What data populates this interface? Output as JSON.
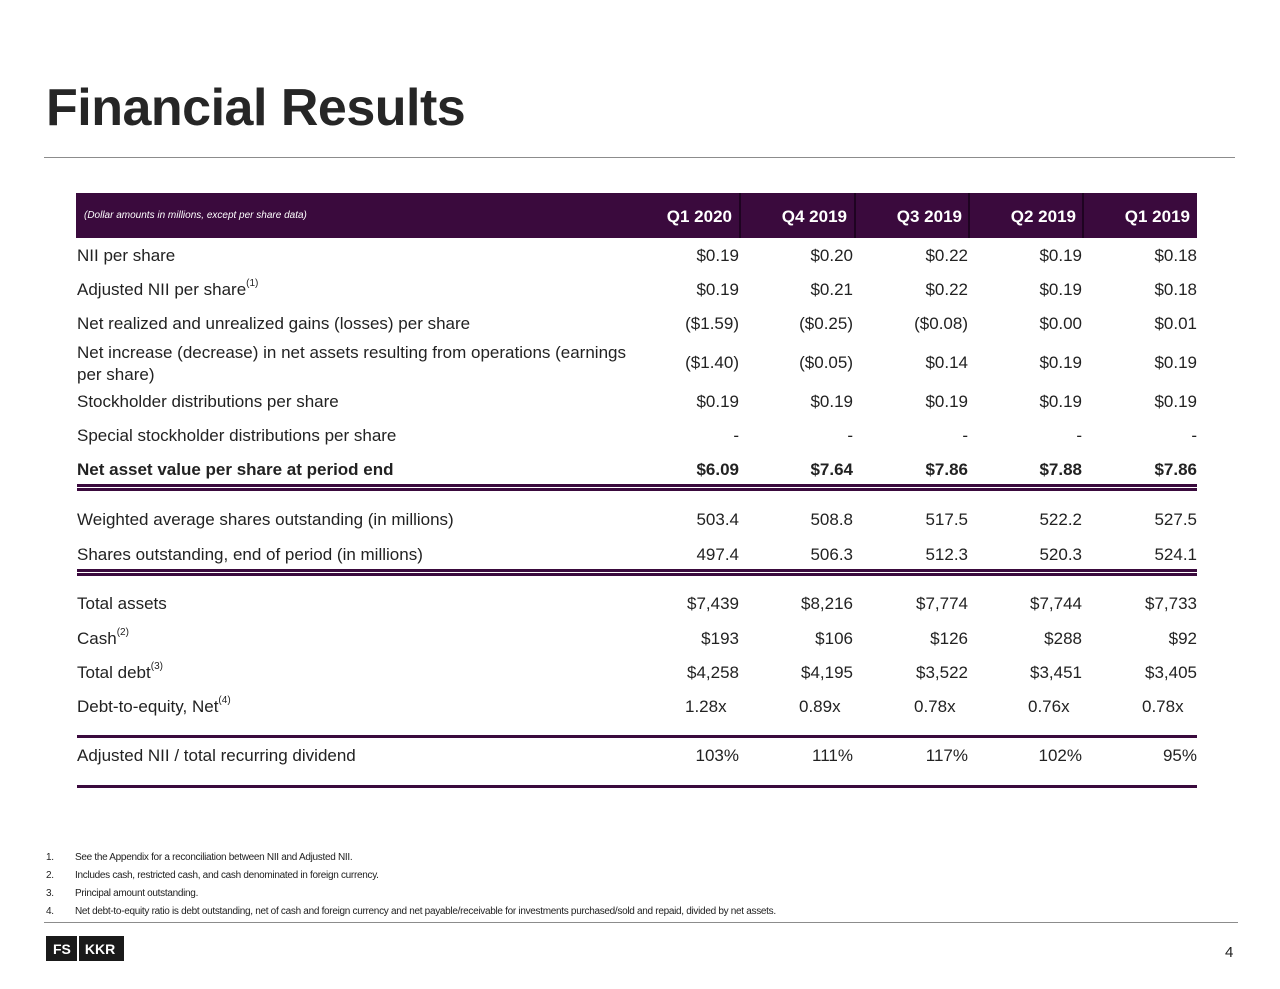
{
  "title": "Financial Results",
  "table": {
    "note": "(Dollar amounts in millions, except per share data)",
    "columns": [
      "Q1 2020",
      "Q4 2019",
      "Q3 2019",
      "Q2 2019",
      "Q1 2019"
    ],
    "rows": [
      {
        "label": "NII per share",
        "sup": "",
        "values": [
          "$0.19",
          "$0.20",
          "$0.22",
          "$0.19",
          "$0.18"
        ]
      },
      {
        "label": "Adjusted NII per share",
        "sup": "(1)",
        "values": [
          "$0.19",
          "$0.21",
          "$0.22",
          "$0.19",
          "$0.18"
        ]
      },
      {
        "label": "Net realized and unrealized gains (losses) per share",
        "sup": "",
        "values": [
          "($1.59)",
          "($0.25)",
          "($0.08)",
          "$0.00",
          "$0.01"
        ]
      },
      {
        "label": "Net increase (decrease) in net assets resulting from operations (earnings per share)",
        "sup": "",
        "values": [
          "($1.40)",
          "($0.05)",
          "$0.14",
          "$0.19",
          "$0.19"
        ]
      },
      {
        "label": "Stockholder distributions per share",
        "sup": "",
        "values": [
          "$0.19",
          "$0.19",
          "$0.19",
          "$0.19",
          "$0.19"
        ]
      },
      {
        "label": "Special stockholder distributions per share",
        "sup": "",
        "values": [
          "-",
          "-",
          "-",
          "-",
          "-"
        ]
      },
      {
        "label": "Net asset value per share at period end",
        "sup": "",
        "values": [
          "$6.09",
          "$7.64",
          "$7.86",
          "$7.88",
          "$7.86"
        ]
      },
      {
        "label": "Weighted average shares outstanding (in millions)",
        "sup": "",
        "values": [
          "503.4",
          "508.8",
          "517.5",
          "522.2",
          "527.5"
        ]
      },
      {
        "label": "Shares outstanding, end of period (in millions)",
        "sup": "",
        "values": [
          "497.4",
          "506.3",
          "512.3",
          "520.3",
          "524.1"
        ]
      },
      {
        "label": "Total assets",
        "sup": "",
        "values": [
          "$7,439",
          "$8,216",
          "$7,774",
          "$7,744",
          "$7,733"
        ]
      },
      {
        "label": "Cash",
        "sup": "(2)",
        "values": [
          "$193",
          "$106",
          "$126",
          "$288",
          "$92"
        ]
      },
      {
        "label": "Total debt",
        "sup": "(3)",
        "values": [
          "$4,258",
          "$4,195",
          "$3,522",
          "$3,451",
          "$3,405"
        ]
      },
      {
        "label": "Debt-to-equity, Net",
        "sup": "(4)",
        "values": [
          "1.28x",
          "0.89x",
          "0.78x",
          "0.76x",
          "0.78x"
        ]
      },
      {
        "label": "Adjusted NII / total recurring dividend",
        "sup": "",
        "values": [
          "103%",
          "111%",
          "117%",
          "102%",
          "95%"
        ]
      }
    ]
  },
  "footnotes": [
    {
      "num": "1.",
      "text": "See the Appendix for a reconciliation between NII and Adjusted NII."
    },
    {
      "num": "2.",
      "text": "Includes cash, restricted cash, and cash denominated in foreign currency."
    },
    {
      "num": "3.",
      "text": "Principal amount outstanding."
    },
    {
      "num": "4.",
      "text": "Net debt-to-equity ratio is debt outstanding, net of cash and foreign currency and net payable/receivable for investments purchased/sold and repaid, divided by net assets."
    }
  ],
  "logo": {
    "left": "FS",
    "right": "KKR"
  },
  "page_number": "4",
  "colors": {
    "accent": "#3a0a3d",
    "text": "#222222"
  }
}
